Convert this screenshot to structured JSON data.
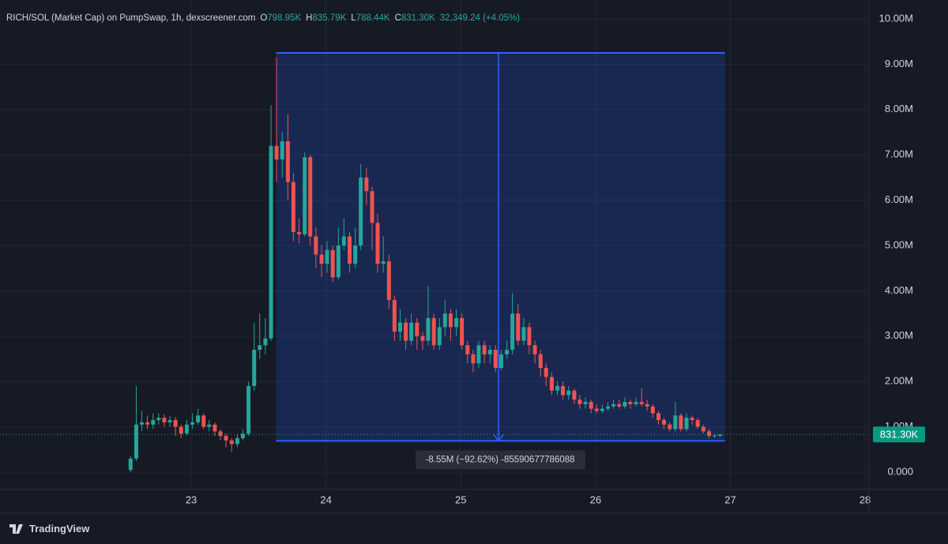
{
  "chart_data": {
    "type": "candlestick",
    "title": "RICH/SOL (Market Cap) on PumpSwap, 1h, dexscreener.com",
    "legend_values": [
      {
        "label": "O",
        "value": "798.95K"
      },
      {
        "label": "H",
        "value": "835.79K"
      },
      {
        "label": "L",
        "value": "788.44K"
      },
      {
        "label": "C",
        "value": "831.30K"
      }
    ],
    "change": "32,349.24 (+4.05%)",
    "up_color": "#26a69a",
    "down_color": "#ef5350",
    "grid": true,
    "xlim": [
      21.581,
      28.029
    ],
    "xticks": [
      23,
      24,
      25,
      26,
      27,
      28
    ],
    "ylim": [
      -0.383,
      10.418
    ],
    "yticks": [
      {
        "value": 0,
        "label": "0.000"
      },
      {
        "value": 1,
        "label": "1.00M"
      },
      {
        "value": 2,
        "label": "2.00M"
      },
      {
        "value": 3,
        "label": "3.00M"
      },
      {
        "value": 4,
        "label": "4.00M"
      },
      {
        "value": 5,
        "label": "5.00M"
      },
      {
        "value": 6,
        "label": "6.00M"
      },
      {
        "value": 7,
        "label": "7.00M"
      },
      {
        "value": 8,
        "label": "8.00M"
      },
      {
        "value": 9,
        "label": "9.00M"
      },
      {
        "value": 10,
        "label": "10.00M"
      }
    ],
    "x": [
      22.55,
      22.592,
      22.633,
      22.675,
      22.717,
      22.758,
      22.8,
      22.842,
      22.883,
      22.925,
      22.967,
      23.008,
      23.05,
      23.092,
      23.133,
      23.175,
      23.217,
      23.258,
      23.3,
      23.342,
      23.383,
      23.425,
      23.467,
      23.508,
      23.55,
      23.592,
      23.633,
      23.675,
      23.717,
      23.758,
      23.8,
      23.842,
      23.883,
      23.925,
      23.967,
      24.008,
      24.05,
      24.092,
      24.133,
      24.175,
      24.217,
      24.258,
      24.3,
      24.342,
      24.383,
      24.425,
      24.467,
      24.508,
      24.55,
      24.592,
      24.633,
      24.675,
      24.717,
      24.758,
      24.8,
      24.842,
      24.883,
      24.925,
      24.967,
      25.008,
      25.05,
      25.092,
      25.133,
      25.175,
      25.217,
      25.258,
      25.3,
      25.342,
      25.383,
      25.425,
      25.467,
      25.508,
      25.55,
      25.592,
      25.633,
      25.675,
      25.717,
      25.758,
      25.8,
      25.842,
      25.883,
      25.925,
      25.967,
      26.008,
      26.05,
      26.092,
      26.133,
      26.175,
      26.217,
      26.258,
      26.3,
      26.342,
      26.383,
      26.425,
      26.467,
      26.508,
      26.55,
      26.592,
      26.633,
      26.675,
      26.717,
      26.758,
      26.8,
      26.842,
      26.883,
      26.925
    ],
    "open": [
      0.05,
      0.3,
      1.05,
      1.1,
      1.05,
      1.15,
      1.2,
      1.1,
      1.15,
      1.0,
      0.85,
      1.05,
      1.1,
      1.25,
      1.0,
      1.05,
      0.9,
      0.8,
      0.7,
      0.62,
      0.75,
      0.85,
      1.9,
      2.7,
      2.8,
      2.95,
      7.2,
      6.9,
      7.3,
      6.4,
      5.3,
      5.25,
      6.95,
      5.2,
      4.8,
      4.6,
      4.9,
      4.3,
      5.0,
      5.2,
      4.6,
      5.0,
      6.5,
      6.2,
      5.5,
      4.6,
      4.65,
      3.8,
      3.1,
      3.3,
      2.9,
      3.3,
      3.0,
      2.9,
      3.4,
      2.8,
      3.2,
      3.5,
      3.2,
      3.4,
      2.8,
      2.6,
      2.4,
      2.8,
      2.6,
      2.7,
      2.3,
      2.6,
      2.7,
      3.5,
      2.9,
      3.2,
      2.8,
      2.6,
      2.3,
      2.1,
      1.8,
      1.9,
      1.7,
      1.8,
      1.6,
      1.5,
      1.55,
      1.4,
      1.35,
      1.4,
      1.45,
      1.5,
      1.45,
      1.55,
      1.5,
      1.55,
      1.5,
      1.45,
      1.3,
      1.15,
      1.05,
      0.95,
      1.25,
      0.95,
      1.2,
      1.15,
      1.0,
      0.9,
      0.8,
      0.79895
    ],
    "high": [
      0.35,
      1.9,
      1.35,
      1.25,
      1.3,
      1.3,
      1.28,
      1.25,
      1.22,
      1.05,
      1.15,
      1.3,
      1.4,
      1.3,
      1.15,
      1.1,
      0.95,
      0.85,
      0.75,
      0.85,
      0.95,
      2.0,
      3.3,
      3.5,
      3.4,
      8.1,
      9.15,
      7.5,
      7.9,
      6.6,
      5.6,
      7.05,
      7.0,
      5.4,
      5.0,
      5.1,
      5.0,
      5.4,
      5.6,
      5.3,
      5.4,
      6.8,
      6.7,
      6.3,
      5.7,
      5.2,
      4.8,
      3.9,
      3.6,
      3.4,
      3.5,
      3.4,
      3.1,
      4.1,
      3.5,
      3.4,
      3.8,
      3.6,
      3.6,
      3.5,
      2.9,
      2.7,
      2.9,
      2.9,
      2.8,
      2.8,
      2.7,
      2.9,
      3.95,
      3.7,
      3.4,
      3.3,
      2.9,
      2.7,
      2.4,
      2.2,
      2.0,
      2.0,
      1.9,
      1.85,
      1.7,
      1.65,
      1.6,
      1.5,
      1.5,
      1.55,
      1.6,
      1.6,
      1.65,
      1.6,
      1.65,
      1.85,
      1.6,
      1.5,
      1.35,
      1.2,
      1.1,
      1.55,
      1.3,
      1.3,
      1.25,
      1.2,
      1.05,
      0.95,
      0.85,
      0.83579
    ],
    "low": [
      0.0,
      0.25,
      0.9,
      0.95,
      0.95,
      1.05,
      1.0,
      1.0,
      0.8,
      0.75,
      0.8,
      0.95,
      1.05,
      0.95,
      0.9,
      0.8,
      0.7,
      0.55,
      0.45,
      0.55,
      0.7,
      0.8,
      1.8,
      2.5,
      2.6,
      2.9,
      6.4,
      6.5,
      6.0,
      5.1,
      5.05,
      5.2,
      5.0,
      4.5,
      4.3,
      4.4,
      4.2,
      4.25,
      4.9,
      4.4,
      4.5,
      4.9,
      5.9,
      4.9,
      4.4,
      4.4,
      3.6,
      2.9,
      2.9,
      2.7,
      2.8,
      2.7,
      2.7,
      2.8,
      2.7,
      2.7,
      3.0,
      2.9,
      3.0,
      2.7,
      2.4,
      2.2,
      2.3,
      2.4,
      2.4,
      2.2,
      2.25,
      2.5,
      2.6,
      2.8,
      2.8,
      2.6,
      2.4,
      2.1,
      1.9,
      1.7,
      1.7,
      1.6,
      1.6,
      1.5,
      1.4,
      1.4,
      1.3,
      1.3,
      1.3,
      1.35,
      1.4,
      1.4,
      1.4,
      1.4,
      1.45,
      1.45,
      1.35,
      1.2,
      1.05,
      0.95,
      0.9,
      0.9,
      0.9,
      0.9,
      1.05,
      0.95,
      0.85,
      0.75,
      0.76,
      0.78844
    ],
    "close": [
      0.3,
      1.05,
      1.1,
      1.05,
      1.15,
      1.2,
      1.1,
      1.15,
      1.0,
      0.85,
      1.05,
      1.1,
      1.25,
      1.0,
      1.05,
      0.9,
      0.8,
      0.7,
      0.62,
      0.75,
      0.85,
      1.9,
      2.7,
      2.8,
      2.95,
      7.2,
      6.9,
      7.3,
      6.4,
      5.3,
      5.25,
      6.95,
      5.2,
      4.8,
      4.6,
      4.9,
      4.3,
      5.0,
      5.2,
      4.6,
      5.0,
      6.5,
      6.2,
      5.5,
      4.6,
      4.65,
      3.8,
      3.1,
      3.3,
      2.9,
      3.3,
      3.0,
      2.9,
      3.4,
      2.8,
      3.2,
      3.5,
      3.2,
      3.4,
      2.8,
      2.6,
      2.4,
      2.8,
      2.6,
      2.7,
      2.3,
      2.6,
      2.7,
      3.5,
      2.9,
      3.2,
      2.8,
      2.6,
      2.3,
      2.1,
      1.8,
      1.9,
      1.7,
      1.8,
      1.6,
      1.5,
      1.55,
      1.4,
      1.35,
      1.4,
      1.45,
      1.5,
      1.45,
      1.55,
      1.5,
      1.55,
      1.5,
      1.45,
      1.3,
      1.15,
      1.05,
      0.95,
      1.25,
      0.95,
      1.2,
      1.15,
      1.0,
      0.9,
      0.8,
      0.81,
      0.8313
    ],
    "last_price_label": "831.30K",
    "measure": {
      "x": [
        23.63,
        26.96
      ],
      "y": [
        9.25,
        0.69
      ],
      "arrow_x": 25.28,
      "label": "-8.55M (−92.62%) -85590677786088",
      "color": "#2962ff"
    }
  },
  "branding": "TradingView"
}
